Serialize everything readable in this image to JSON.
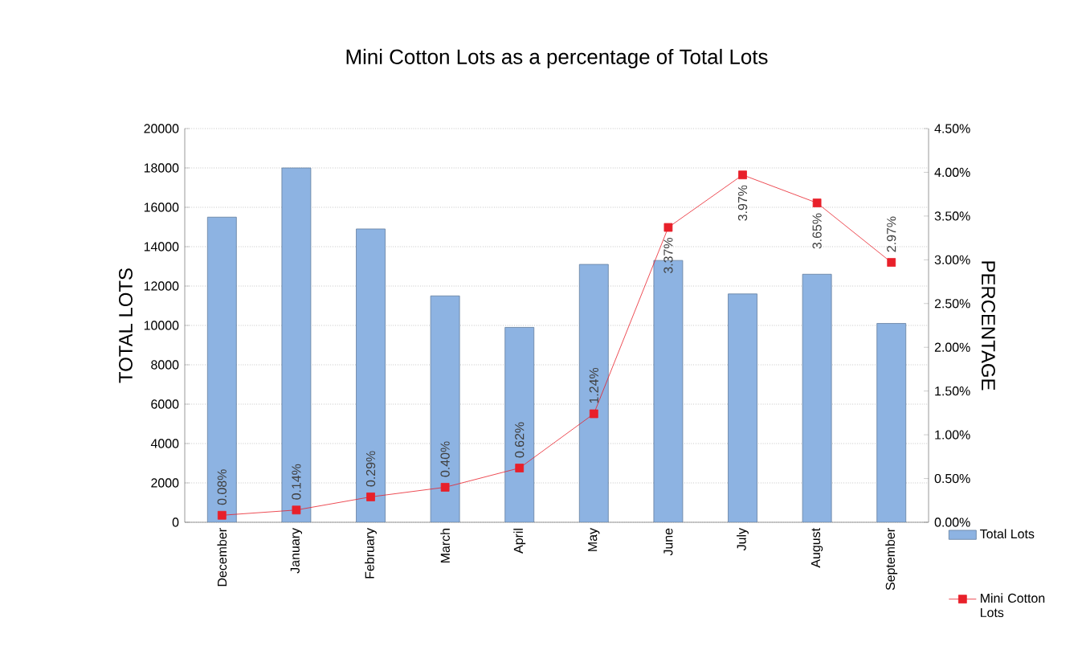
{
  "chart_data": {
    "type": "bar",
    "title": "Mini Cotton Lots as a percentage of Total Lots",
    "ylabel": "TOTAL LOTS",
    "y2label": "PERCENTAGE",
    "categories": [
      "December",
      "January",
      "February",
      "March",
      "April",
      "May",
      "June",
      "July",
      "August",
      "September"
    ],
    "series": [
      {
        "name": "Total Lots",
        "color": "#8db3e2",
        "values": [
          15500,
          18000,
          14900,
          11500,
          9900,
          13100,
          13300,
          11600,
          12600,
          10100
        ]
      },
      {
        "name": "Mini Cotton Lots",
        "type": "line",
        "axis": "y2",
        "color": "#e8202a",
        "marker": "square",
        "values": [
          0.08,
          0.14,
          0.29,
          0.4,
          0.62,
          1.24,
          3.37,
          3.97,
          3.65,
          2.97
        ],
        "value_labels": [
          "0.08%",
          "0.14%",
          "0.29%",
          "0.40%",
          "0.62%",
          "1.24%",
          "3.37%",
          "3.97%",
          "3.65%",
          "2.97%"
        ]
      }
    ],
    "ylim": [
      0,
      20000
    ],
    "yticks": [
      0,
      2000,
      4000,
      6000,
      8000,
      10000,
      12000,
      14000,
      16000,
      18000,
      20000
    ],
    "y2lim": [
      0,
      4.5
    ],
    "y2ticks": [
      {
        "value": 0,
        "label": "0.00%"
      },
      {
        "value": 0.5,
        "label": "0.50%"
      },
      {
        "value": 1,
        "label": "1.00%"
      },
      {
        "value": 1.5,
        "label": "1.50%"
      },
      {
        "value": 2,
        "label": "2.00%"
      },
      {
        "value": 2.5,
        "label": "2.50%"
      },
      {
        "value": 3,
        "label": "3.00%"
      },
      {
        "value": 3.5,
        "label": "3.50%"
      },
      {
        "value": 4,
        "label": "4.00%"
      },
      {
        "value": 4.5,
        "label": "4.50%"
      }
    ],
    "grid": "y",
    "legend": "right"
  }
}
